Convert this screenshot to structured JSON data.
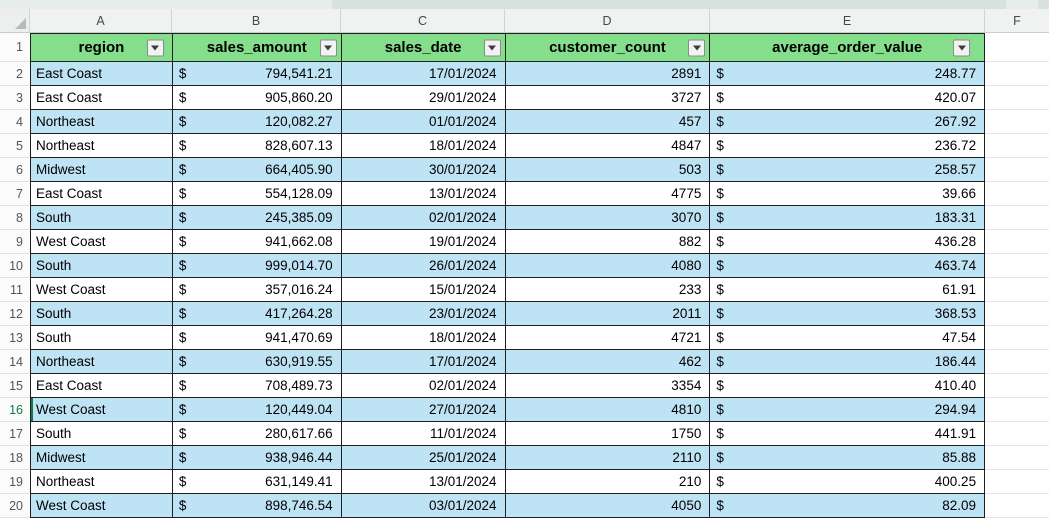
{
  "chrome": {
    "column_letters": [
      "A",
      "B",
      "C",
      "D",
      "E",
      "F"
    ]
  },
  "table": {
    "headers": [
      "region",
      "sales_amount",
      "sales_date",
      "customer_count",
      "average_order_value"
    ],
    "currency_symbol": "$",
    "header_row_number": "1",
    "rows": [
      {
        "row": "2",
        "region": "East Coast",
        "sales_amount": "794,541.21",
        "sales_date": "17/01/2024",
        "customer_count": "2891",
        "average_order_value": "248.77"
      },
      {
        "row": "3",
        "region": "East Coast",
        "sales_amount": "905,860.20",
        "sales_date": "29/01/2024",
        "customer_count": "3727",
        "average_order_value": "420.07"
      },
      {
        "row": "4",
        "region": "Northeast",
        "sales_amount": "120,082.27",
        "sales_date": "01/01/2024",
        "customer_count": "457",
        "average_order_value": "267.92"
      },
      {
        "row": "5",
        "region": "Northeast",
        "sales_amount": "828,607.13",
        "sales_date": "18/01/2024",
        "customer_count": "4847",
        "average_order_value": "236.72"
      },
      {
        "row": "6",
        "region": "Midwest",
        "sales_amount": "664,405.90",
        "sales_date": "30/01/2024",
        "customer_count": "503",
        "average_order_value": "258.57"
      },
      {
        "row": "7",
        "region": "East Coast",
        "sales_amount": "554,128.09",
        "sales_date": "13/01/2024",
        "customer_count": "4775",
        "average_order_value": "39.66"
      },
      {
        "row": "8",
        "region": "South",
        "sales_amount": "245,385.09",
        "sales_date": "02/01/2024",
        "customer_count": "3070",
        "average_order_value": "183.31"
      },
      {
        "row": "9",
        "region": "West Coast",
        "sales_amount": "941,662.08",
        "sales_date": "19/01/2024",
        "customer_count": "882",
        "average_order_value": "436.28"
      },
      {
        "row": "10",
        "region": "South",
        "sales_amount": "999,014.70",
        "sales_date": "26/01/2024",
        "customer_count": "4080",
        "average_order_value": "463.74"
      },
      {
        "row": "11",
        "region": "West Coast",
        "sales_amount": "357,016.24",
        "sales_date": "15/01/2024",
        "customer_count": "233",
        "average_order_value": "61.91"
      },
      {
        "row": "12",
        "region": "South",
        "sales_amount": "417,264.28",
        "sales_date": "23/01/2024",
        "customer_count": "2011",
        "average_order_value": "368.53"
      },
      {
        "row": "13",
        "region": "South",
        "sales_amount": "941,470.69",
        "sales_date": "18/01/2024",
        "customer_count": "4721",
        "average_order_value": "47.54"
      },
      {
        "row": "14",
        "region": "Northeast",
        "sales_amount": "630,919.55",
        "sales_date": "17/01/2024",
        "customer_count": "462",
        "average_order_value": "186.44"
      },
      {
        "row": "15",
        "region": "East Coast",
        "sales_amount": "708,489.73",
        "sales_date": "02/01/2024",
        "customer_count": "3354",
        "average_order_value": "410.40"
      },
      {
        "row": "16",
        "region": "West Coast",
        "sales_amount": "120,449.04",
        "sales_date": "27/01/2024",
        "customer_count": "4810",
        "average_order_value": "294.94"
      },
      {
        "row": "17",
        "region": "South",
        "sales_amount": "280,617.66",
        "sales_date": "11/01/2024",
        "customer_count": "1750",
        "average_order_value": "441.91"
      },
      {
        "row": "18",
        "region": "Midwest",
        "sales_amount": "938,946.44",
        "sales_date": "25/01/2024",
        "customer_count": "2110",
        "average_order_value": "85.88"
      },
      {
        "row": "19",
        "region": "Northeast",
        "sales_amount": "631,149.41",
        "sales_date": "13/01/2024",
        "customer_count": "210",
        "average_order_value": "400.25"
      },
      {
        "row": "20",
        "region": "West Coast",
        "sales_amount": "898,746.54",
        "sales_date": "03/01/2024",
        "customer_count": "4050",
        "average_order_value": "82.09"
      }
    ]
  },
  "selection": {
    "active_row": "16",
    "active_column": "A"
  },
  "colors": {
    "header_fill": "#84DE8B",
    "band_fill": "#BEE3F4",
    "active_green": "#107C41",
    "grid_border": "#1f1f1f"
  }
}
